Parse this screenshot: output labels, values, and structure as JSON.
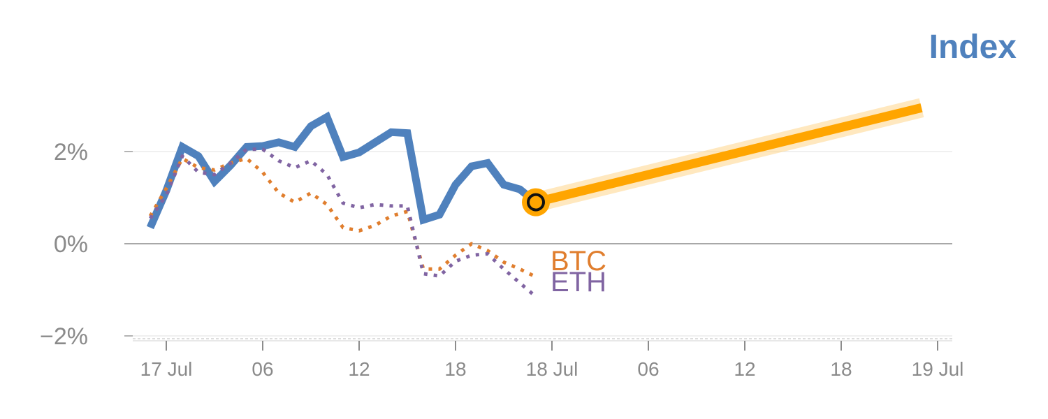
{
  "chart_data": {
    "type": "line",
    "title": "Index",
    "y_unit": "%",
    "ylim": [
      -2,
      3
    ],
    "y_ticks": [
      {
        "value": 2,
        "label": "2%"
      },
      {
        "value": 0,
        "label": "0%"
      },
      {
        "value": -2,
        "label": "−2%"
      }
    ],
    "x_ticks": [
      {
        "hour": 0,
        "label": "17 Jul"
      },
      {
        "hour": 6,
        "label": "06"
      },
      {
        "hour": 12,
        "label": "12"
      },
      {
        "hour": 18,
        "label": "18"
      },
      {
        "hour": 24,
        "label": "18 Jul"
      },
      {
        "hour": 30,
        "label": "06"
      },
      {
        "hour": 36,
        "label": "12"
      },
      {
        "hour": 42,
        "label": "18"
      },
      {
        "hour": 48,
        "label": "19 Jul"
      }
    ],
    "grid": "horizontal",
    "series": [
      {
        "name": "Index",
        "label_shown": false,
        "color": "#4f81bd",
        "style": "solid",
        "x": [
          -1,
          0,
          1,
          2,
          3,
          4,
          5,
          6,
          7,
          8,
          9,
          10,
          11,
          12,
          13,
          14,
          15,
          16,
          17,
          18,
          19,
          20,
          21,
          22,
          23
        ],
        "y": [
          0.35,
          1.15,
          2.1,
          1.9,
          1.35,
          1.7,
          2.1,
          2.12,
          2.2,
          2.1,
          2.55,
          2.75,
          1.88,
          1.98,
          2.2,
          2.42,
          2.4,
          0.52,
          0.63,
          1.28,
          1.68,
          1.75,
          1.28,
          1.18,
          0.9
        ]
      },
      {
        "name": "BTC",
        "color": "#e07e2e",
        "style": "dotted",
        "x": [
          -1,
          0,
          1,
          2,
          3,
          4,
          5,
          6,
          7,
          8,
          9,
          10,
          11,
          12,
          13,
          14,
          15,
          16,
          17,
          18,
          19,
          20,
          21,
          22,
          23
        ],
        "y": [
          0.6,
          1.2,
          1.85,
          1.65,
          1.6,
          1.75,
          1.85,
          1.55,
          1.1,
          0.9,
          1.1,
          0.85,
          0.35,
          0.28,
          0.4,
          0.6,
          0.7,
          -0.55,
          -0.55,
          -0.25,
          0.0,
          -0.15,
          -0.4,
          -0.55,
          -0.72
        ]
      },
      {
        "name": "ETH",
        "color": "#8064a2",
        "style": "dotted",
        "x": [
          -1,
          0,
          1,
          2,
          3,
          4,
          5,
          6,
          7,
          8,
          9,
          10,
          11,
          12,
          13,
          14,
          15,
          16,
          17,
          18,
          19,
          20,
          21,
          22,
          23
        ],
        "y": [
          0.55,
          1.05,
          1.9,
          1.55,
          1.5,
          1.75,
          2.05,
          2.05,
          1.8,
          1.65,
          1.8,
          1.5,
          0.88,
          0.78,
          0.85,
          0.82,
          0.82,
          -0.65,
          -0.7,
          -0.38,
          -0.25,
          -0.22,
          -0.55,
          -0.85,
          -1.15
        ]
      },
      {
        "name": "Index projection",
        "label_shown": false,
        "color": "#ffa500",
        "style": "solid-highlight",
        "x": [
          23,
          47
        ],
        "y": [
          0.9,
          2.95
        ]
      }
    ],
    "markers": [
      {
        "series": "Index",
        "x": 23,
        "y": 0.9,
        "color": "#ffa500"
      }
    ]
  }
}
